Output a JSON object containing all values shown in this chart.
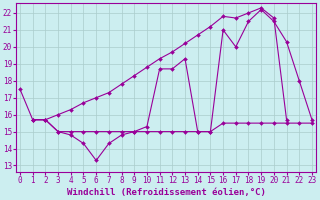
{
  "background_color": "#cceef0",
  "grid_color": "#aacccc",
  "line_color": "#990099",
  "xlabel": "Windchill (Refroidissement éolien,°C)",
  "xlabel_fontsize": 6.5,
  "tick_fontsize": 5.5,
  "ylabel_ticks": [
    13,
    14,
    15,
    16,
    17,
    18,
    19,
    20,
    21,
    22
  ],
  "xlabel_ticks": [
    0,
    1,
    2,
    3,
    4,
    5,
    6,
    7,
    8,
    9,
    10,
    11,
    12,
    13,
    14,
    15,
    16,
    17,
    18,
    19,
    20,
    21,
    22,
    23
  ],
  "xlim": [
    -0.3,
    23.3
  ],
  "ylim": [
    12.6,
    22.6
  ],
  "line1_x": [
    0,
    1,
    2,
    3,
    4,
    5,
    6,
    7,
    8,
    9,
    10,
    11,
    12,
    13,
    14,
    15,
    16,
    17,
    18,
    19,
    20,
    21,
    22,
    23
  ],
  "line1_y": [
    17.5,
    15.7,
    15.7,
    15.0,
    14.8,
    14.3,
    13.3,
    14.3,
    14.8,
    15.0,
    15.3,
    18.7,
    18.7,
    19.3,
    15.0,
    15.0,
    21.0,
    20.0,
    21.5,
    22.2,
    21.5,
    20.3,
    18.0,
    15.7
  ],
  "line2_x": [
    1,
    2,
    3,
    4,
    5,
    6,
    7,
    8,
    9,
    10,
    11,
    12,
    13,
    14,
    15,
    16,
    17,
    18,
    19,
    20,
    21,
    22,
    23
  ],
  "line2_y": [
    15.7,
    15.7,
    15.0,
    15.0,
    15.0,
    15.0,
    15.0,
    15.0,
    15.0,
    15.0,
    15.0,
    15.0,
    15.0,
    15.0,
    15.0,
    15.5,
    15.5,
    15.5,
    15.5,
    15.5,
    15.5,
    15.5,
    15.5
  ],
  "line3_x": [
    1,
    2,
    3,
    4,
    5,
    6,
    7,
    8,
    9,
    10,
    11,
    12,
    13,
    14,
    15,
    16,
    17,
    18,
    19,
    20,
    21
  ],
  "line3_y": [
    15.7,
    15.7,
    16.0,
    16.3,
    16.7,
    17.0,
    17.3,
    17.8,
    18.3,
    18.8,
    19.3,
    19.7,
    20.2,
    20.7,
    21.2,
    21.8,
    21.7,
    22.0,
    22.3,
    21.7,
    15.7
  ]
}
